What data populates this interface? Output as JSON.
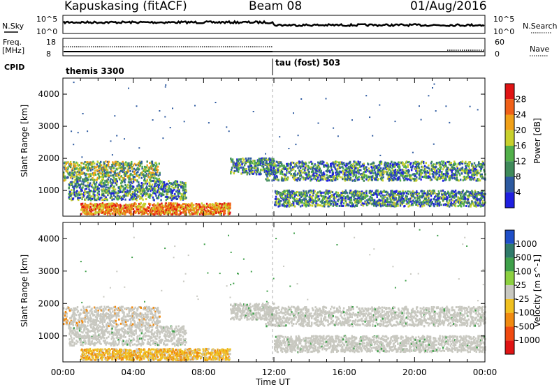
{
  "header": {
    "station": "Kapuskasing (fitACF)",
    "beam": "Beam 08",
    "date": "01/Aug/2016"
  },
  "left_labels": {
    "nsky": "N.Sky",
    "nsky_top": "10^5",
    "nsky_bot": "10^0",
    "freq": "Freq.",
    "freq_unit": "[MHz]",
    "freq_top": "18",
    "freq_bot": "8",
    "cpid": "CPID"
  },
  "right_labels": {
    "nsearch": "N.Search",
    "nsearch_top": "10^5",
    "nsearch_bot": "10^0",
    "nave_top": "60",
    "nave_bot": "0",
    "nave": "Nave"
  },
  "cpid_segments": [
    {
      "label": "themis 3300"
    },
    {
      "label": "tau (fost) 503"
    }
  ],
  "chart_data": [
    {
      "type": "heatmap",
      "title": "",
      "ylabel": "Slant Range [km]",
      "y_ticks": [
        "1000",
        "2000",
        "3000",
        "4000"
      ],
      "ylim": [
        200,
        4500
      ],
      "colorbar": {
        "label": "Power [dB]",
        "ticks": [
          "4",
          "8",
          "12",
          "16",
          "20",
          "24",
          "28"
        ],
        "colors": [
          "#1f1fe0",
          "#2d5aa0",
          "#3f8a5a",
          "#52b04a",
          "#c8d02c",
          "#f0a018",
          "#f06018",
          "#e01414"
        ]
      },
      "echo_bands_km": [
        {
          "start_h": 0.0,
          "end_h": 5.5,
          "range_km": [
            1300,
            1900
          ]
        },
        {
          "start_h": 0.3,
          "end_h": 7.0,
          "range_km": [
            700,
            1300
          ]
        },
        {
          "start_h": 1.0,
          "end_h": 9.5,
          "range_km": [
            250,
            600
          ]
        },
        {
          "start_h": 9.5,
          "end_h": 12.0,
          "range_km": [
            1500,
            2000
          ]
        },
        {
          "start_h": 11.5,
          "end_h": 24.0,
          "range_km": [
            1300,
            1900
          ]
        },
        {
          "start_h": 12.0,
          "end_h": 24.0,
          "range_km": [
            500,
            1000
          ]
        }
      ]
    },
    {
      "type": "heatmap",
      "title": "",
      "ylabel": "Slant Range [km]",
      "y_ticks": [
        "1000",
        "2000",
        "3000",
        "4000"
      ],
      "ylim": [
        200,
        4500
      ],
      "colorbar": {
        "label": "Velocity [m s^-1]",
        "ticks": [
          "1000",
          "500",
          "100",
          "25",
          "-25",
          "-100",
          "-500",
          "-1000"
        ],
        "colors": [
          "#1f4fc8",
          "#2f7a6a",
          "#3fa04a",
          "#8cd040",
          "#c8c8c0",
          "#f0c020",
          "#f08a10",
          "#f04a10",
          "#e01414"
        ]
      },
      "echo_bands_km": [
        {
          "start_h": 0.0,
          "end_h": 5.5,
          "range_km": [
            1300,
            1900
          ]
        },
        {
          "start_h": 0.3,
          "end_h": 7.0,
          "range_km": [
            700,
            1300
          ]
        },
        {
          "start_h": 1.0,
          "end_h": 9.5,
          "range_km": [
            250,
            600
          ]
        },
        {
          "start_h": 9.5,
          "end_h": 12.0,
          "range_km": [
            1500,
            2000
          ]
        },
        {
          "start_h": 11.5,
          "end_h": 24.0,
          "range_km": [
            1300,
            1900
          ]
        },
        {
          "start_h": 12.0,
          "end_h": 24.0,
          "range_km": [
            500,
            1000
          ]
        }
      ]
    }
  ],
  "x_axis": {
    "ticks": [
      "00:00",
      "04:00",
      "08:00",
      "12:00",
      "16:00",
      "20:00",
      "00:00"
    ],
    "label": "Time UT"
  }
}
